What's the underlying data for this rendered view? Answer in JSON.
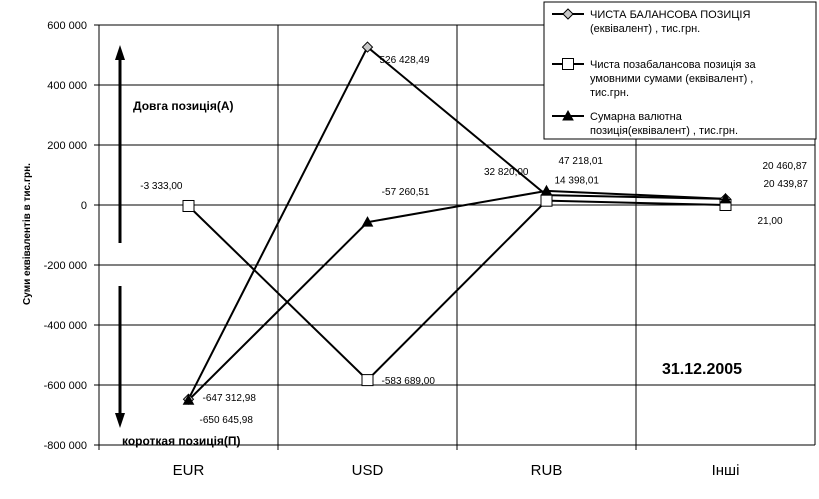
{
  "chart_data": {
    "type": "line",
    "categories": [
      "EUR",
      "USD",
      "RUB",
      "Інші"
    ],
    "ylabel": "Суми еквівалентів в тис.грн.",
    "ylim": [
      -800000,
      600000
    ],
    "yticks": [
      600000,
      400000,
      200000,
      0,
      -200000,
      -400000,
      -600000,
      -800000
    ],
    "ytick_labels": [
      "600 000",
      "400 000",
      "200 000",
      "0",
      "-200 000",
      "-400 000",
      "-600 000",
      "-800 000"
    ],
    "grid": true,
    "legend_position": "top-right",
    "series": [
      {
        "name": "ЧИСТА БАЛАНСОВА ПОЗИЦІЯ (еквівалент) , тис.грн.",
        "name_lines": [
          "ЧИСТА БАЛАНСОВА ПОЗИЦІЯ",
          "(еквівалент) , тис.грн."
        ],
        "marker": "diamond",
        "values": [
          -647312.98,
          526428.49,
          32820.0,
          20439.87
        ],
        "labels": [
          "-647 312,98",
          "526 428,49",
          "32 820,00",
          "20 439,87"
        ]
      },
      {
        "name": "Чиста позабалансова позиція за умовними сумами (еквівалент) , тис.грн.",
        "name_lines": [
          "Чиста позабалансова позиція за",
          "умовними сумами (еквівалент) ,",
          "тис.грн."
        ],
        "marker": "square",
        "values": [
          -3333.0,
          -583689.0,
          14398.01,
          21.0
        ],
        "labels": [
          "-3 333,00",
          "-583 689,00",
          "14 398,01",
          "21,00"
        ]
      },
      {
        "name": "Сумарна валютна позиція(еквівалент) , тис.грн.",
        "name_lines": [
          "Сумарна валютна",
          "позиція(еквівалент) , тис.грн."
        ],
        "marker": "triangle",
        "values": [
          -650645.98,
          -57260.51,
          47218.01,
          20460.87
        ],
        "labels": [
          "-650 645,98",
          "-57 260,51",
          "47 218,01",
          "20 460,87"
        ]
      }
    ],
    "annotations": {
      "long_position": "Довга позиція(А)",
      "short_position": "короткая позиція(П)",
      "date": "31.12.2005"
    }
  }
}
